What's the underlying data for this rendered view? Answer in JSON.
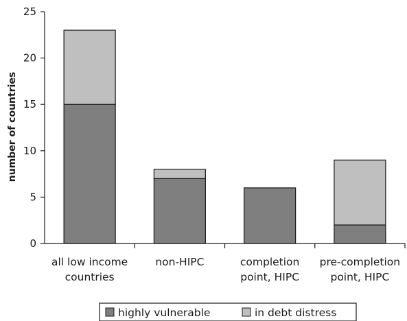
{
  "chart_data": {
    "type": "bar",
    "stacked": true,
    "categories": [
      [
        "all low income",
        "countries"
      ],
      [
        "non-HIPC"
      ],
      [
        "completion",
        "point, HIPC"
      ],
      [
        "pre-completion",
        "point, HIPC"
      ]
    ],
    "series": [
      {
        "name": "highly vulnerable",
        "color": "#7f7f7f",
        "values": [
          15,
          7,
          6,
          2
        ]
      },
      {
        "name": "in debt distress",
        "color": "#bfbfbf",
        "values": [
          8,
          1,
          0,
          7
        ]
      }
    ],
    "ylabel": "number of countries",
    "xlabel": "",
    "ylim": [
      0,
      25
    ],
    "yticks": [
      0,
      5,
      10,
      15,
      20,
      25
    ],
    "grid": false,
    "legend_position": "bottom-center"
  }
}
